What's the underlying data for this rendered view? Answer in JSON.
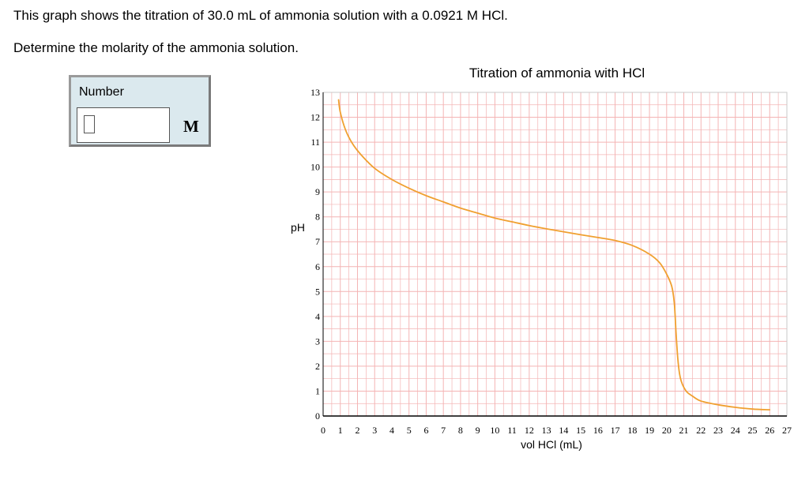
{
  "question": {
    "line1": "This graph shows the titration of 30.0 mL of ammonia solution with a 0.0921 M HCl.",
    "line2": "Determine the molarity of the ammonia solution."
  },
  "answer": {
    "label": "Number",
    "value": "",
    "unit": "M"
  },
  "colors": {
    "curve": "#f0a030",
    "grid": "#f4b4b4",
    "axis": "#000000",
    "panel": "#dbe9ee"
  },
  "chart_data": {
    "type": "line",
    "title": "Titration of ammonia with HCl",
    "xlabel": "vol HCl (mL)",
    "ylabel": "pH",
    "xlim": [
      0,
      27
    ],
    "ylim": [
      0,
      13
    ],
    "x_ticks": [
      0,
      1,
      2,
      3,
      4,
      5,
      6,
      7,
      8,
      9,
      10,
      11,
      12,
      13,
      14,
      15,
      16,
      17,
      18,
      19,
      20,
      21,
      22,
      23,
      24,
      25,
      26,
      27
    ],
    "y_ticks": [
      0,
      1,
      2,
      3,
      4,
      5,
      6,
      7,
      8,
      9,
      10,
      11,
      12,
      13
    ],
    "grid": true,
    "series": [
      {
        "x": [
          0.9,
          1.0,
          1.3,
          1.7,
          2.2,
          3.0,
          4.0,
          5.0,
          6.0,
          7.0,
          8.0,
          9.0,
          10.0,
          11.0,
          12.0,
          13.0,
          14.0,
          15.0,
          16.0,
          17.0,
          18.0,
          19.0,
          19.6,
          20.0,
          20.3,
          20.45,
          20.55,
          20.65,
          20.75,
          20.85,
          21.0,
          21.2,
          21.5,
          22.0,
          23.0,
          24.0,
          25.0,
          26.0
        ],
        "y": [
          12.7,
          12.2,
          11.5,
          10.95,
          10.5,
          9.95,
          9.5,
          9.15,
          8.85,
          8.6,
          8.35,
          8.15,
          7.95,
          7.8,
          7.65,
          7.52,
          7.4,
          7.28,
          7.17,
          7.05,
          6.85,
          6.5,
          6.15,
          5.7,
          5.2,
          4.5,
          3.3,
          2.3,
          1.7,
          1.4,
          1.15,
          0.95,
          0.8,
          0.6,
          0.45,
          0.35,
          0.28,
          0.25
        ]
      }
    ]
  }
}
